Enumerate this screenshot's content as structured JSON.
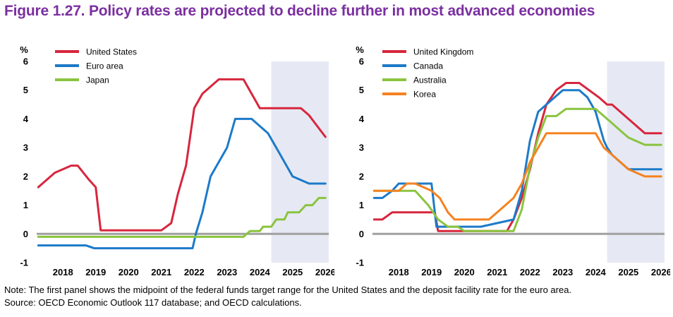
{
  "title": "Figure 1.27. Policy rates are projected to decline further in most advanced economies",
  "note": "Note: The first panel shows the midpoint of the federal funds target range for the United States and the deposit facility rate for the euro area.",
  "source": "Source: OECD Economic Outlook 117 database; and OECD calculations.",
  "colors": {
    "title": "#7b2fa0",
    "projection_shade": "#e6e9f3",
    "zero_line": "#a0a0a0"
  },
  "chart_data": [
    {
      "type": "line",
      "ylabel": "%",
      "ylim": [
        -1,
        6
      ],
      "yticks": [
        -1,
        0,
        1,
        2,
        3,
        4,
        5,
        6
      ],
      "xlim": [
        2017.7,
        2026.6
      ],
      "xticks": [
        "2018",
        "2019",
        "2020",
        "2021",
        "2022",
        "2023",
        "2024",
        "2025",
        "2026"
      ],
      "projection_start": 2024.85,
      "legend_position": "top-left",
      "series": [
        {
          "name": "United States",
          "color": "#d7263d",
          "x": [
            2017.75,
            2018.0,
            2018.25,
            2018.75,
            2018.95,
            2019.3,
            2019.5,
            2019.65,
            2019.9,
            2020.0,
            2020.5,
            2021.0,
            2021.5,
            2021.8,
            2022.0,
            2022.25,
            2022.5,
            2022.75,
            2023.0,
            2023.25,
            2023.5,
            2023.75,
            2024.0,
            2024.5,
            2024.75,
            2025.0,
            2025.25,
            2025.5,
            2025.75,
            2026.0,
            2026.25,
            2026.5
          ],
          "y": [
            1.625,
            1.875,
            2.125,
            2.375,
            2.375,
            1.875,
            1.625,
            0.125,
            0.125,
            0.125,
            0.125,
            0.125,
            0.125,
            0.375,
            1.375,
            2.375,
            4.375,
            4.875,
            5.125,
            5.375,
            5.375,
            5.375,
            5.375,
            4.375,
            4.375,
            4.375,
            4.375,
            4.375,
            4.375,
            4.125,
            3.75,
            3.375
          ]
        },
        {
          "name": "Euro area",
          "color": "#1c7ac9",
          "x": [
            2017.75,
            2019.2,
            2019.45,
            2022.45,
            2022.55,
            2022.75,
            2023.0,
            2023.5,
            2023.75,
            2024.0,
            2024.25,
            2024.5,
            2024.75,
            2025.0,
            2025.25,
            2025.5,
            2026.0,
            2026.5
          ],
          "y": [
            -0.4,
            -0.4,
            -0.5,
            -0.5,
            0.0,
            0.75,
            2.0,
            3.0,
            4.0,
            4.0,
            4.0,
            3.75,
            3.5,
            3.0,
            2.5,
            2.0,
            1.75,
            1.75
          ]
        },
        {
          "name": "Japan",
          "color": "#8ac43f",
          "x": [
            2017.75,
            2024.0,
            2024.2,
            2024.5,
            2024.6,
            2024.85,
            2025.0,
            2025.1,
            2025.25,
            2025.35,
            2025.55,
            2025.7,
            2025.9,
            2026.1,
            2026.3,
            2026.5
          ],
          "y": [
            -0.1,
            -0.1,
            0.1,
            0.1,
            0.25,
            0.25,
            0.5,
            0.5,
            0.5,
            0.75,
            0.75,
            0.75,
            1.0,
            1.0,
            1.25,
            1.25
          ]
        }
      ]
    },
    {
      "type": "line",
      "ylabel": "%",
      "ylim": [
        -1,
        6
      ],
      "yticks": [
        -1,
        0,
        1,
        2,
        3,
        4,
        5,
        6
      ],
      "xlim": [
        2017.7,
        2026.6
      ],
      "xticks": [
        "2018",
        "2019",
        "2020",
        "2021",
        "2022",
        "2023",
        "2024",
        "2025",
        "2026"
      ],
      "projection_start": 2024.85,
      "legend_position": "top-left",
      "series": [
        {
          "name": "United Kingdom",
          "color": "#d7263d",
          "x": [
            2017.75,
            2018.0,
            2018.3,
            2019.0,
            2019.6,
            2019.7,
            2020.0,
            2021.8,
            2022.0,
            2022.25,
            2022.5,
            2022.75,
            2023.0,
            2023.3,
            2023.6,
            2023.75,
            2024.0,
            2024.3,
            2024.6,
            2024.85,
            2025.0,
            2025.25,
            2025.5,
            2025.75,
            2026.0,
            2026.5
          ],
          "y": [
            0.5,
            0.5,
            0.75,
            0.75,
            0.75,
            0.1,
            0.1,
            0.1,
            0.5,
            1.25,
            2.25,
            3.5,
            4.5,
            5.0,
            5.25,
            5.25,
            5.25,
            5.0,
            4.75,
            4.5,
            4.5,
            4.25,
            4.0,
            3.75,
            3.5,
            3.5
          ]
        },
        {
          "name": "Canada",
          "color": "#1c7ac9",
          "x": [
            2017.75,
            2018.0,
            2018.3,
            2018.5,
            2019.0,
            2019.5,
            2019.65,
            2020.0,
            2020.3,
            2021.0,
            2022.0,
            2022.25,
            2022.5,
            2022.75,
            2023.0,
            2023.25,
            2023.5,
            2023.75,
            2024.0,
            2024.25,
            2024.5,
            2024.75,
            2024.85,
            2025.0,
            2025.25,
            2025.5,
            2026.0,
            2026.5
          ],
          "y": [
            1.25,
            1.25,
            1.5,
            1.75,
            1.75,
            1.75,
            0.25,
            0.25,
            0.25,
            0.25,
            0.5,
            1.5,
            3.25,
            4.25,
            4.5,
            4.75,
            5.0,
            5.0,
            5.0,
            4.75,
            4.25,
            3.25,
            3.0,
            2.75,
            2.5,
            2.25,
            2.25,
            2.25
          ]
        },
        {
          "name": "Australia",
          "color": "#8ac43f",
          "x": [
            2017.75,
            2019.0,
            2019.4,
            2019.55,
            2019.7,
            2020.0,
            2020.3,
            2020.5,
            2022.0,
            2022.25,
            2022.5,
            2022.75,
            2023.0,
            2023.3,
            2023.6,
            2024.0,
            2024.4,
            2024.5,
            2025.0,
            2025.25,
            2025.5,
            2026.0,
            2026.5
          ],
          "y": [
            1.5,
            1.5,
            1.0,
            0.75,
            0.5,
            0.25,
            0.25,
            0.1,
            0.1,
            0.85,
            2.35,
            3.35,
            4.1,
            4.1,
            4.35,
            4.35,
            4.35,
            4.35,
            3.85,
            3.6,
            3.35,
            3.1,
            3.1
          ]
        },
        {
          "name": "Korea",
          "color": "#f58220",
          "x": [
            2017.75,
            2018.0,
            2018.5,
            2018.75,
            2019.0,
            2019.5,
            2019.75,
            2020.0,
            2020.2,
            2020.5,
            2021.0,
            2021.25,
            2021.5,
            2021.75,
            2022.0,
            2022.25,
            2022.5,
            2022.75,
            2023.0,
            2023.5,
            2024.0,
            2024.25,
            2024.5,
            2024.75,
            2025.0,
            2025.25,
            2025.5,
            2026.0,
            2026.5
          ],
          "y": [
            1.5,
            1.5,
            1.5,
            1.75,
            1.75,
            1.5,
            1.25,
            0.75,
            0.5,
            0.5,
            0.5,
            0.5,
            0.75,
            1.0,
            1.25,
            1.75,
            2.5,
            3.0,
            3.5,
            3.5,
            3.5,
            3.5,
            3.5,
            3.0,
            2.75,
            2.5,
            2.25,
            2.0,
            2.0
          ]
        }
      ]
    }
  ]
}
